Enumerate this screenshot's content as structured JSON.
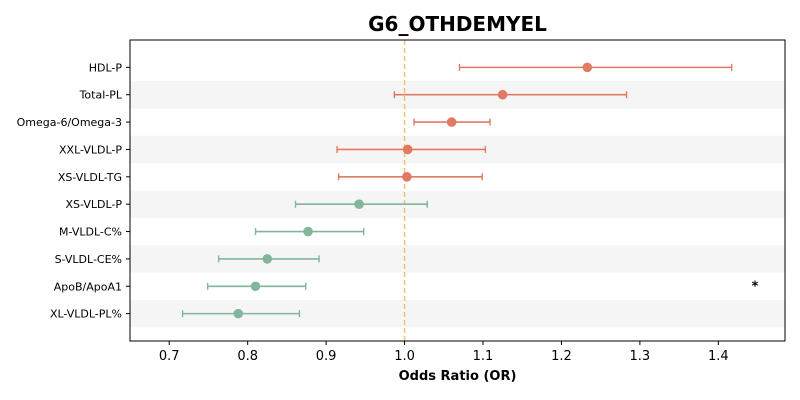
{
  "chart_data": {
    "type": "forest",
    "title": "G6_OTHDEMYEL",
    "xlabel": "Odds Ratio (OR)",
    "xlim": [
      0.65,
      1.485
    ],
    "xticks": [
      0.7,
      0.8,
      0.9,
      1.0,
      1.1,
      1.2,
      1.3,
      1.4
    ],
    "xtick_labels": [
      "0.7",
      "0.8",
      "0.9",
      "1.0",
      "1.1",
      "1.2",
      "1.3",
      "1.4"
    ],
    "reference_line": 1.0,
    "colors": {
      "increased": "#e07b62",
      "decreased": "#82b59c",
      "reference": "#f5c07a",
      "band": "#f5f5f5"
    },
    "rows": [
      {
        "label": "HDL-P",
        "or": 1.233,
        "ci_low": 1.07,
        "ci_high": 1.417,
        "direction": "increased",
        "annotation": ""
      },
      {
        "label": "Total-PL",
        "or": 1.125,
        "ci_low": 0.987,
        "ci_high": 1.283,
        "direction": "increased",
        "annotation": ""
      },
      {
        "label": "Omega-6/Omega-3",
        "or": 1.06,
        "ci_low": 1.012,
        "ci_high": 1.109,
        "direction": "increased",
        "annotation": ""
      },
      {
        "label": "XXL-VLDL-P",
        "or": 1.004,
        "ci_low": 0.914,
        "ci_high": 1.103,
        "direction": "increased",
        "annotation": ""
      },
      {
        "label": "XS-VLDL-TG",
        "or": 1.003,
        "ci_low": 0.916,
        "ci_high": 1.099,
        "direction": "increased",
        "annotation": ""
      },
      {
        "label": "XS-VLDL-P",
        "or": 0.942,
        "ci_low": 0.861,
        "ci_high": 1.029,
        "direction": "decreased",
        "annotation": ""
      },
      {
        "label": "M-VLDL-C%",
        "or": 0.877,
        "ci_low": 0.81,
        "ci_high": 0.948,
        "direction": "decreased",
        "annotation": ""
      },
      {
        "label": "S-VLDL-CE%",
        "or": 0.825,
        "ci_low": 0.763,
        "ci_high": 0.891,
        "direction": "decreased",
        "annotation": ""
      },
      {
        "label": "ApoB/ApoA1",
        "or": 0.81,
        "ci_low": 0.749,
        "ci_high": 0.874,
        "direction": "decreased",
        "annotation": "*"
      },
      {
        "label": "XL-VLDL-PL%",
        "or": 0.788,
        "ci_low": 0.717,
        "ci_high": 0.866,
        "direction": "decreased",
        "annotation": ""
      }
    ]
  }
}
